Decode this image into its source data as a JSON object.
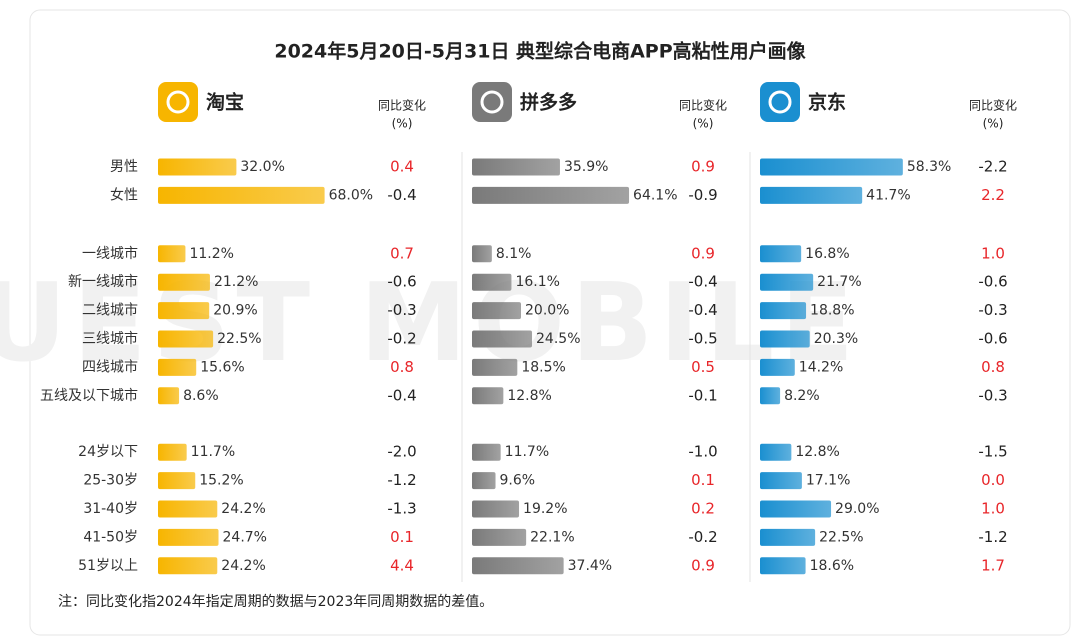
{
  "chart_data": {
    "type": "bar",
    "title": "2024年5月20日-5月31日 典型综合电商APP高粘性用户画像",
    "categories": [
      "男性",
      "女性",
      "一线城市",
      "新一线城市",
      "二线城市",
      "三线城市",
      "四线城市",
      "五线及以下城市",
      "24岁以下",
      "25-30岁",
      "31-40岁",
      "41-50岁",
      "51岁以上"
    ],
    "change_header": [
      "同比变化",
      "(%)"
    ],
    "positive_color": "#e8262a",
    "negative_color": "#222222",
    "series": [
      {
        "name": "淘宝",
        "color": "#f7b500",
        "values": [
          32.0,
          68.0,
          11.2,
          21.2,
          20.9,
          22.5,
          15.6,
          8.6,
          11.7,
          15.2,
          24.2,
          24.7,
          24.2
        ],
        "value_labels": [
          "32.0%",
          "68.0%",
          "11.2%",
          "21.2%",
          "20.9%",
          "22.5%",
          "15.6%",
          "8.6%",
          "11.7%",
          "15.2%",
          "24.2%",
          "24.7%",
          "24.2%"
        ],
        "changes": [
          "0.4",
          "-0.4",
          "0.7",
          "-0.6",
          "-0.3",
          "-0.2",
          "0.8",
          "-0.4",
          "-2.0",
          "-1.2",
          "-1.3",
          "0.1",
          "4.4"
        ]
      },
      {
        "name": "拼多多",
        "color": "#7a7a7a",
        "values": [
          35.9,
          64.1,
          8.1,
          16.1,
          20.0,
          24.5,
          18.5,
          12.8,
          11.7,
          9.6,
          19.2,
          22.1,
          37.4
        ],
        "value_labels": [
          "35.9%",
          "64.1%",
          "8.1%",
          "16.1%",
          "20.0%",
          "24.5%",
          "18.5%",
          "12.8%",
          "11.7%",
          "9.6%",
          "19.2%",
          "22.1%",
          "37.4%"
        ],
        "changes": [
          "0.9",
          "-0.9",
          "0.9",
          "-0.4",
          "-0.4",
          "-0.5",
          "0.5",
          "-0.1",
          "-1.0",
          "0.1",
          "0.2",
          "-0.2",
          "0.9"
        ]
      },
      {
        "name": "京东",
        "color": "#1a8fd0",
        "values": [
          58.3,
          41.7,
          16.8,
          21.7,
          18.8,
          20.3,
          14.2,
          8.2,
          12.8,
          17.1,
          29.0,
          22.5,
          18.6
        ],
        "value_labels": [
          "58.3%",
          "41.7%",
          "16.8%",
          "21.7%",
          "18.8%",
          "20.3%",
          "14.2%",
          "8.2%",
          "12.8%",
          "17.1%",
          "29.0%",
          "22.5%",
          "18.6%"
        ],
        "changes": [
          "-2.2",
          "2.2",
          "1.0",
          "-0.6",
          "-0.3",
          "-0.6",
          "0.8",
          "-0.3",
          "-1.5",
          "0.0",
          "1.0",
          "-1.2",
          "1.7"
        ]
      }
    ],
    "note": "注：同比变化指2024年指定周期的数据与2023年同周期数据的差值。",
    "watermark": "QUEST MOBILE"
  }
}
